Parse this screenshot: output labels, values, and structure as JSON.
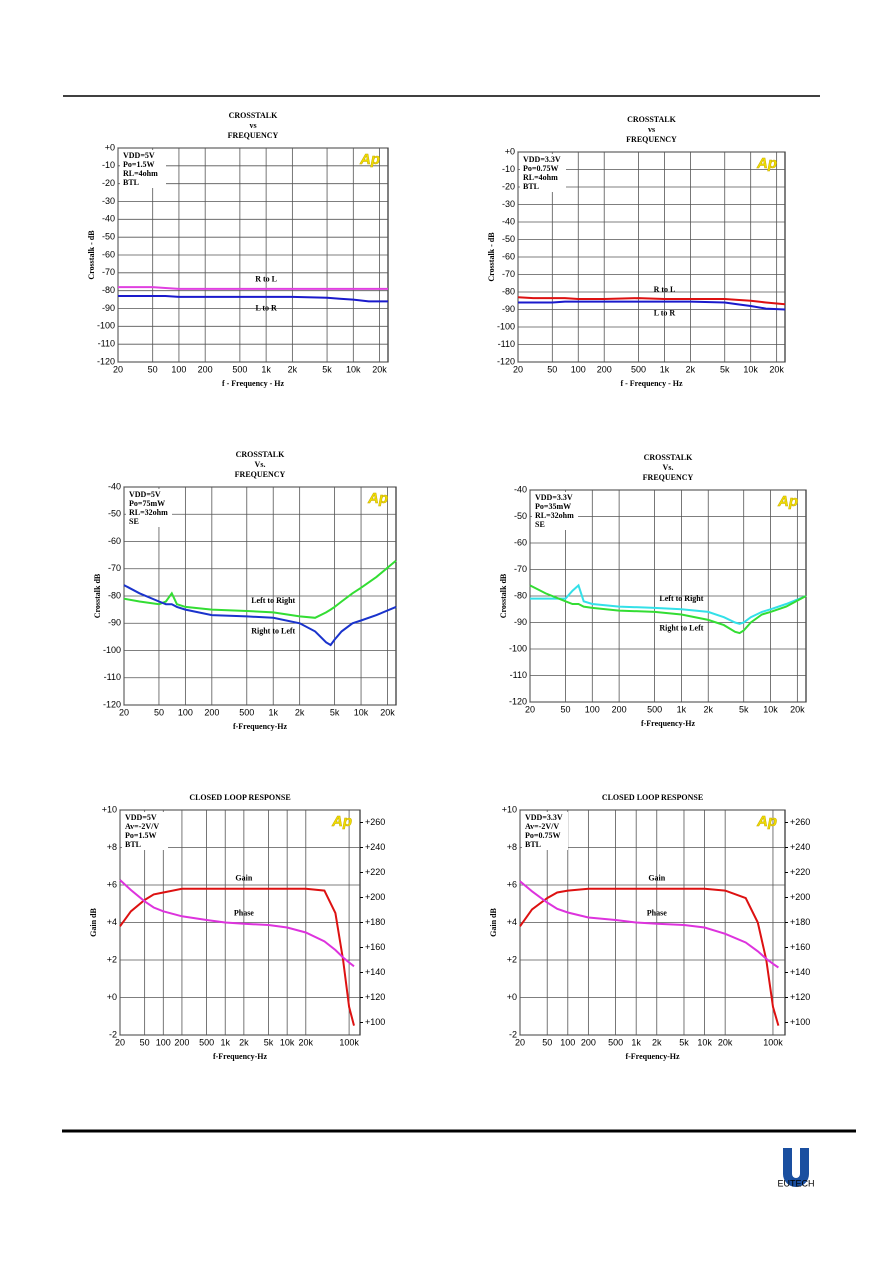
{
  "chart_data": [
    {
      "type": "line",
      "title": [
        "CROSSTALK",
        "vs",
        "FREQUENCY"
      ],
      "notes": [
        "VDD=5V",
        "Po=1.5W",
        "RL=4ohm",
        "BTL"
      ],
      "badge": "Ap",
      "x_label": "f - Frequency - Hz",
      "y_label": "Crosstalk - dB",
      "log_x": true,
      "grid": true,
      "x": [
        20,
        30,
        50,
        70,
        100,
        200,
        500,
        1000,
        2000,
        5000,
        7000,
        10000,
        15000,
        25000
      ],
      "series": [
        {
          "name": "R to L",
          "color": "#e040e0",
          "values": [
            -78,
            -78,
            -78,
            -78.5,
            -79,
            -79,
            -79,
            -79,
            -79,
            -79,
            -79,
            -79,
            -79,
            -79
          ]
        },
        {
          "name": "L to R",
          "color": "#1a1acc",
          "values": [
            -83,
            -83,
            -83,
            -83,
            -83.5,
            -83.5,
            -83.5,
            -83.5,
            -83.5,
            -84,
            -84.5,
            -85,
            -86,
            -86
          ]
        }
      ],
      "xlim": [
        20,
        25000
      ],
      "xticks": [
        20,
        50,
        100,
        200,
        500,
        {
          "value": 1000,
          "label": "1k"
        },
        {
          "value": 2000,
          "label": "2k"
        },
        {
          "value": 5000,
          "label": "5k"
        },
        {
          "value": 10000,
          "label": "10k"
        },
        {
          "value": 20000,
          "label": "20k"
        }
      ],
      "ylim": [
        -120,
        0
      ],
      "yticks": [
        {
          "value": 0,
          "label": "+0"
        },
        -10,
        -20,
        -30,
        -40,
        -50,
        -60,
        -70,
        -80,
        -90,
        -100,
        -110,
        -120
      ]
    },
    {
      "type": "line",
      "title": [
        "CROSSTALK",
        "vs",
        "FREQUENCY"
      ],
      "notes": [
        "VDD=3.3V",
        "Po=0.75W",
        "RL=4ohm",
        "BTL"
      ],
      "badge": "Ap",
      "x_label": "f - Frequency - Hz",
      "y_label": "Crosstalk - dB",
      "log_x": true,
      "grid": true,
      "x": [
        20,
        30,
        50,
        70,
        100,
        200,
        500,
        1000,
        2000,
        5000,
        7000,
        10000,
        15000,
        25000
      ],
      "series": [
        {
          "name": "R to L",
          "color": "#dd1111",
          "values": [
            -83,
            -83.5,
            -83.5,
            -83.5,
            -84,
            -84,
            -83.5,
            -84,
            -84,
            -84,
            -84.5,
            -85,
            -86,
            -87
          ]
        },
        {
          "name": "L to R",
          "color": "#1a1acc",
          "values": [
            -86,
            -86,
            -86,
            -85.5,
            -85.5,
            -85.5,
            -85.5,
            -85.5,
            -85.5,
            -86,
            -87,
            -88,
            -89.5,
            -90
          ]
        }
      ],
      "xlim": [
        20,
        25000
      ],
      "xticks": [
        20,
        50,
        100,
        200,
        500,
        {
          "value": 1000,
          "label": "1k"
        },
        {
          "value": 2000,
          "label": "2k"
        },
        {
          "value": 5000,
          "label": "5k"
        },
        {
          "value": 10000,
          "label": "10k"
        },
        {
          "value": 20000,
          "label": "20k"
        }
      ],
      "ylim": [
        -120,
        0
      ],
      "yticks": [
        {
          "value": 0,
          "label": "+0"
        },
        -10,
        -20,
        -30,
        -40,
        -50,
        -60,
        -70,
        -80,
        -90,
        -100,
        -110,
        -120
      ]
    },
    {
      "type": "line",
      "title": [
        "CROSSTALK",
        "Vs.",
        "FREQUENCY"
      ],
      "notes": [
        "VDD=5V",
        "Po=75mW",
        "RL=32ohm",
        "SE"
      ],
      "badge": "Ap",
      "x_label": "f-Frequency-Hz",
      "y_label": "Crosstalk dB",
      "log_x": true,
      "grid": true,
      "x": [
        20,
        30,
        50,
        60,
        70,
        80,
        100,
        200,
        500,
        1000,
        2000,
        3000,
        4000,
        4500,
        5000,
        6000,
        8000,
        10000,
        15000,
        25000
      ],
      "series": [
        {
          "name": "Left to Right",
          "color": "#33dd33",
          "values": [
            -81,
            -82,
            -83,
            -82,
            -79,
            -83,
            -84,
            -85,
            -85.5,
            -86,
            -87.5,
            -88,
            -86,
            -85,
            -84,
            -82,
            -79,
            -77,
            -73,
            -67
          ]
        },
        {
          "name": "Right to Left",
          "color": "#1a33cc",
          "values": [
            -76,
            -79,
            -82,
            -83,
            -83,
            -84,
            -85,
            -87,
            -87.5,
            -88,
            -90,
            -93,
            -97,
            -98,
            -96,
            -93,
            -90,
            -89,
            -87,
            -84
          ]
        }
      ],
      "xlim": [
        20,
        25000
      ],
      "xticks": [
        20,
        50,
        100,
        200,
        500,
        {
          "value": 1000,
          "label": "1k"
        },
        {
          "value": 2000,
          "label": "2k"
        },
        {
          "value": 5000,
          "label": "5k"
        },
        {
          "value": 10000,
          "label": "10k"
        },
        {
          "value": 20000,
          "label": "20k"
        }
      ],
      "ylim": [
        -120,
        -40
      ],
      "yticks": [
        -40,
        -50,
        -60,
        -70,
        -80,
        -90,
        -100,
        -110,
        -120
      ]
    },
    {
      "type": "line",
      "title": [
        "CROSSTALK",
        "Vs.",
        "FREQUENCY"
      ],
      "notes": [
        "VDD=3.3V",
        "Po=35mW",
        "RL=32ohm",
        "SE"
      ],
      "badge": "Ap",
      "x_label": "f-Frequency-Hz",
      "y_label": "Crosstalk dB",
      "log_x": true,
      "grid": true,
      "x": [
        20,
        30,
        50,
        60,
        70,
        80,
        100,
        200,
        500,
        1000,
        2000,
        3000,
        4000,
        4500,
        5000,
        6000,
        8000,
        10000,
        15000,
        25000
      ],
      "series": [
        {
          "name": "Left to Right",
          "color": "#33e0e8",
          "values": [
            -81,
            -81,
            -81,
            -78,
            -76,
            -82,
            -83,
            -84,
            -84.5,
            -85,
            -86,
            -88,
            -90,
            -90.5,
            -90,
            -88,
            -86,
            -85,
            -83,
            -80
          ]
        },
        {
          "name": "Right to Left",
          "color": "#33dd33",
          "values": [
            -76,
            -79,
            -82,
            -83,
            -83,
            -84,
            -84.5,
            -85.5,
            -86,
            -87,
            -89,
            -91,
            -93.5,
            -94,
            -93,
            -90,
            -87,
            -86,
            -84,
            -80
          ]
        }
      ],
      "xlim": [
        20,
        25000
      ],
      "xticks": [
        20,
        50,
        100,
        200,
        500,
        {
          "value": 1000,
          "label": "1k"
        },
        {
          "value": 2000,
          "label": "2k"
        },
        {
          "value": 5000,
          "label": "5k"
        },
        {
          "value": 10000,
          "label": "10k"
        },
        {
          "value": 20000,
          "label": "20k"
        }
      ],
      "ylim": [
        -120,
        -40
      ],
      "yticks": [
        -40,
        -50,
        -60,
        -70,
        -80,
        -90,
        -100,
        -110,
        -120
      ]
    },
    {
      "type": "line",
      "title": [
        "CLOSED LOOP RESPONSE"
      ],
      "notes": [
        "VDD=5V",
        "Av=-2V/V",
        "Po=1.5W",
        "BTL"
      ],
      "badge": "Ap",
      "x_label": "f-Frequency-Hz",
      "y_label": "Gain dB",
      "log_x": true,
      "grid": true,
      "x": [
        20,
        30,
        50,
        70,
        100,
        200,
        500,
        1000,
        2000,
        5000,
        10000,
        20000,
        40000,
        60000,
        80000,
        100000,
        120000
      ],
      "series": [
        {
          "name": "Gain",
          "color": "#dd1111",
          "values": [
            3.8,
            4.6,
            5.2,
            5.5,
            5.6,
            5.8,
            5.8,
            5.8,
            5.8,
            5.8,
            5.8,
            5.8,
            5.7,
            4.5,
            2,
            -0.5,
            -1.5
          ]
        },
        {
          "name": "Phase",
          "color": "#dd33dd",
          "axis": "y2",
          "values": [
            214,
            206,
            197,
            192,
            189,
            185,
            182,
            180,
            179,
            178,
            176,
            172,
            165,
            158,
            152,
            148,
            145
          ]
        }
      ],
      "xlim": [
        20,
        150000
      ],
      "xticks": [
        20,
        50,
        100,
        200,
        500,
        {
          "value": 1000,
          "label": "1k"
        },
        {
          "value": 2000,
          "label": "2k"
        },
        {
          "value": 5000,
          "label": "5k"
        },
        {
          "value": 10000,
          "label": "10k"
        },
        {
          "value": 20000,
          "label": "20k"
        },
        {
          "value": 100000,
          "label": "100k"
        }
      ],
      "ylim": [
        -2,
        10
      ],
      "yticks": [
        {
          "value": 10,
          "label": "+10"
        },
        {
          "value": 8,
          "label": "+8"
        },
        {
          "value": 6,
          "label": "+6"
        },
        {
          "value": 4,
          "label": "+4"
        },
        {
          "value": 2,
          "label": "+2"
        },
        {
          "value": 0,
          "label": "+0"
        },
        -2
      ],
      "y2lim": [
        90,
        270
      ],
      "y2ticks": [
        {
          "value": 260,
          "label": "+260"
        },
        {
          "value": 240,
          "label": "+240"
        },
        {
          "value": 220,
          "label": "+220"
        },
        {
          "value": 200,
          "label": "+200"
        },
        {
          "value": 180,
          "label": "+180"
        },
        {
          "value": 160,
          "label": "+160"
        },
        {
          "value": 140,
          "label": "+140"
        },
        {
          "value": 120,
          "label": "+120"
        },
        {
          "value": 100,
          "label": "+100"
        }
      ]
    },
    {
      "type": "line",
      "title": [
        "CLOSED LOOP RESPONSE"
      ],
      "notes": [
        "VDD=3.3V",
        "Av=-2V/V",
        "Po=0.75W",
        "BTL"
      ],
      "badge": "Ap",
      "x_label": "f-Frequency-Hz",
      "y_label": "Gain dB",
      "log_x": true,
      "grid": true,
      "x": [
        20,
        30,
        50,
        70,
        100,
        200,
        500,
        1000,
        2000,
        5000,
        10000,
        20000,
        40000,
        60000,
        80000,
        100000,
        120000
      ],
      "series": [
        {
          "name": "Gain",
          "color": "#dd1111",
          "values": [
            3.8,
            4.7,
            5.3,
            5.6,
            5.7,
            5.8,
            5.8,
            5.8,
            5.8,
            5.8,
            5.8,
            5.7,
            5.3,
            4,
            2,
            -0.5,
            -1.5
          ]
        },
        {
          "name": "Phase",
          "color": "#dd33dd",
          "axis": "y2",
          "values": [
            213,
            205,
            196,
            191,
            188,
            184,
            182,
            180,
            179,
            178,
            176,
            171,
            164,
            157,
            151,
            147,
            144
          ]
        }
      ],
      "xlim": [
        20,
        150000
      ],
      "xticks": [
        20,
        50,
        100,
        200,
        500,
        {
          "value": 1000,
          "label": "1k"
        },
        {
          "value": 2000,
          "label": "2k"
        },
        {
          "value": 5000,
          "label": "5k"
        },
        {
          "value": 10000,
          "label": "10k"
        },
        {
          "value": 20000,
          "label": "20k"
        },
        {
          "value": 100000,
          "label": "100k"
        }
      ],
      "ylim": [
        -2,
        10
      ],
      "yticks": [
        {
          "value": 10,
          "label": "+10"
        },
        {
          "value": 8,
          "label": "+8"
        },
        {
          "value": 6,
          "label": "+6"
        },
        {
          "value": 4,
          "label": "+4"
        },
        {
          "value": 2,
          "label": "+2"
        },
        {
          "value": 0,
          "label": "+0"
        },
        -2
      ],
      "y2lim": [
        90,
        270
      ],
      "y2ticks": [
        {
          "value": 260,
          "label": "+260"
        },
        {
          "value": 240,
          "label": "+240"
        },
        {
          "value": 220,
          "label": "+220"
        },
        {
          "value": 200,
          "label": "+200"
        },
        {
          "value": 180,
          "label": "+180"
        },
        {
          "value": 160,
          "label": "+160"
        },
        {
          "value": 140,
          "label": "+140"
        },
        {
          "value": 120,
          "label": "+120"
        },
        {
          "value": 100,
          "label": "+100"
        }
      ]
    }
  ],
  "logo": {
    "name": "EUTECH"
  }
}
